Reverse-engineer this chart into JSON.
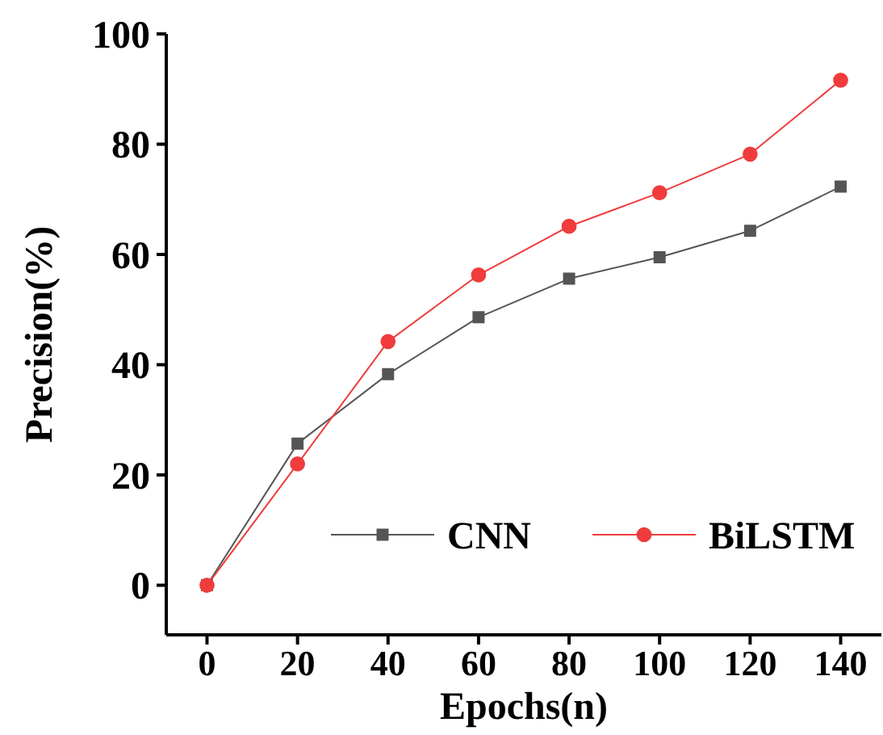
{
  "chart_data": {
    "type": "line",
    "xlabel": "Epochs(n)",
    "ylabel": "Precision(%)",
    "x": [
      0,
      20,
      40,
      60,
      80,
      100,
      120,
      140
    ],
    "series": [
      {
        "name": "CNN",
        "color": "#555555",
        "marker": "square",
        "values": [
          0,
          25.7,
          38.3,
          48.6,
          55.6,
          59.5,
          64.3,
          72.3
        ]
      },
      {
        "name": "BiLSTM",
        "color": "#f03c3c",
        "marker": "circle",
        "values": [
          0,
          22,
          44.2,
          56.3,
          65.1,
          71.2,
          78.2,
          91.6
        ]
      }
    ],
    "xlim": [
      -9,
      149
    ],
    "xticks": [
      0,
      20,
      40,
      60,
      80,
      100,
      120,
      140
    ],
    "ylim": [
      -9,
      100
    ],
    "yticks": [
      0,
      20,
      40,
      60,
      80,
      100
    ],
    "grid": false,
    "legend": "bottom right"
  }
}
